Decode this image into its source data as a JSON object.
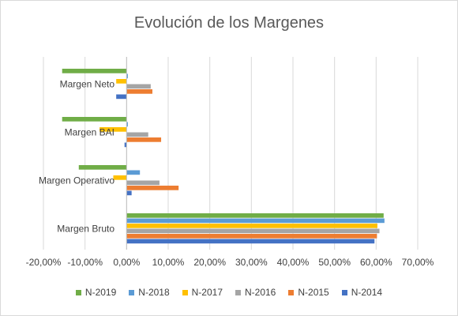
{
  "chart_data": {
    "type": "bar",
    "orientation": "horizontal",
    "title": "Evolución de los Margenes",
    "categories": [
      "Margen Neto",
      "Margen BAI",
      "Margen Operativo",
      "Margen Bruto"
    ],
    "series": [
      {
        "name": "N-2019",
        "color": "#70ad47",
        "values": [
          -15.5,
          -15.5,
          -11.5,
          61.8
        ]
      },
      {
        "name": "N-2018",
        "color": "#5b9bd5",
        "values": [
          0.3,
          0.3,
          3.2,
          62.0
        ]
      },
      {
        "name": "N-2017",
        "color": "#ffc000",
        "values": [
          -2.5,
          -6.5,
          -3.2,
          60.3
        ]
      },
      {
        "name": "N-2016",
        "color": "#a5a5a5",
        "values": [
          5.8,
          5.2,
          7.9,
          60.8
        ]
      },
      {
        "name": "N-2015",
        "color": "#ed7d31",
        "values": [
          6.2,
          8.3,
          12.5,
          60.2
        ]
      },
      {
        "name": "N-2014",
        "color": "#4472c4",
        "values": [
          -2.5,
          -0.5,
          1.2,
          59.6
        ]
      }
    ],
    "xlim": [
      -20,
      70
    ],
    "xticks": [
      "-20,00%",
      "-10,00%",
      "0,00%",
      "10,00%",
      "20,00%",
      "30,00%",
      "40,00%",
      "50,00%",
      "60,00%",
      "70,00%"
    ],
    "xtick_values": [
      -20,
      -10,
      0,
      10,
      20,
      30,
      40,
      50,
      60,
      70
    ],
    "grid": true,
    "legend_position": "bottom"
  }
}
